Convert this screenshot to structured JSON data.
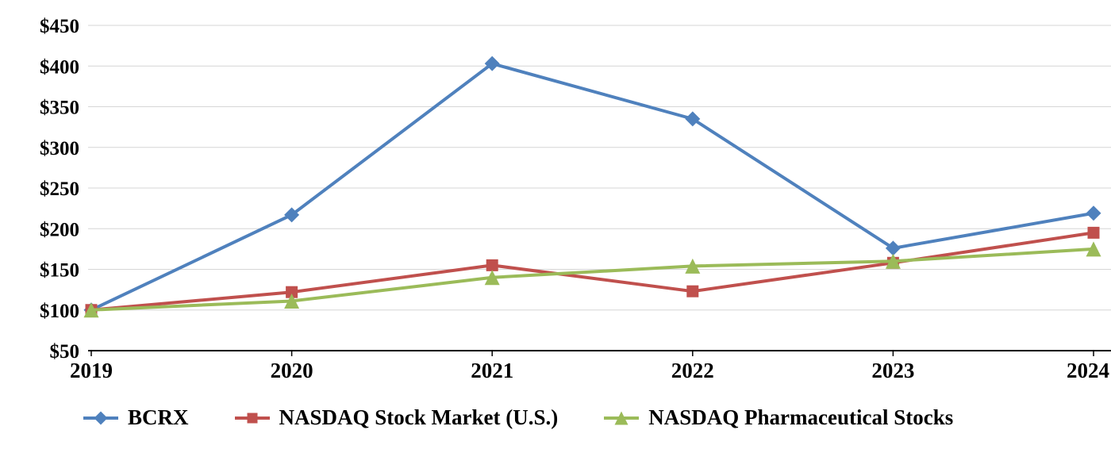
{
  "chart_data": {
    "type": "line",
    "title": "",
    "xlabel": "",
    "ylabel": "",
    "categories": [
      "2019",
      "2020",
      "2021",
      "2022",
      "2023",
      "2024"
    ],
    "series": [
      {
        "name": "BCRX",
        "color": "#4f81bd",
        "marker": "diamond",
        "values": [
          100,
          217,
          403,
          335,
          176,
          219
        ]
      },
      {
        "name": "NASDAQ Stock Market (U.S.)",
        "color": "#c0504d",
        "marker": "square",
        "values": [
          100,
          122,
          155,
          123,
          158,
          195
        ]
      },
      {
        "name": "NASDAQ Pharmaceutical Stocks",
        "color": "#9bbb59",
        "marker": "triangle",
        "values": [
          100,
          111,
          140,
          154,
          160,
          175
        ]
      }
    ],
    "ylim": [
      50,
      450
    ],
    "ytick_step": 50,
    "ytick_prefix": "$",
    "grid": true,
    "gridline_color": "#d6d6d6",
    "axis_line_color": "#000000",
    "legend_position": "bottom"
  }
}
